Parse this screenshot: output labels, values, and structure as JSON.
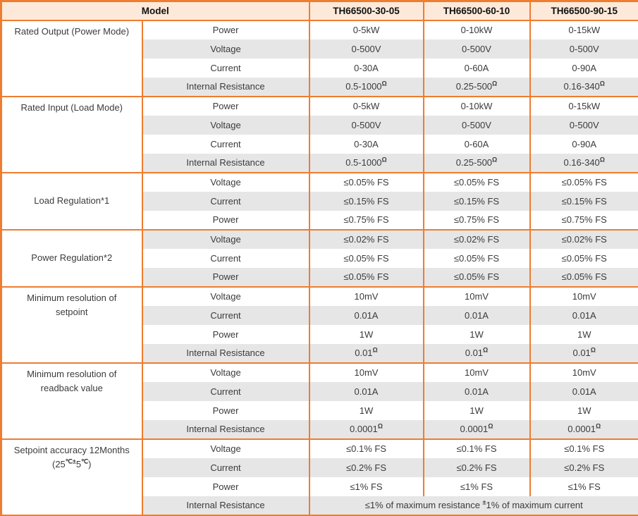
{
  "colors": {
    "accent_orange": "#ED7D31",
    "header_fill": "#FDE9D9",
    "row_stripe_gray": "#E6E6E6",
    "body_text": "#3B3B3B"
  },
  "table": {
    "header": {
      "model_label": "Model",
      "columns": [
        "TH66500-30-05",
        "TH66500-60-10",
        "TH66500-90-15"
      ]
    },
    "sections": [
      {
        "label": "Rated Output (Power Mode)",
        "label_align": "top",
        "rows": [
          {
            "param": "Power",
            "values": [
              "0-5kW",
              "0-10kW",
              "0-15kW"
            ]
          },
          {
            "param": "Voltage",
            "values": [
              "0-500V",
              "0-500V",
              "0-500V"
            ]
          },
          {
            "param": "Current",
            "values": [
              "0-30A",
              "0-60A",
              "0-90A"
            ]
          },
          {
            "param": "Internal Resistance",
            "values": [
              "0.5-1000^Ω^",
              "0.25-500^Ω^",
              "0.16-340^Ω^"
            ]
          }
        ]
      },
      {
        "label": "Rated Input (Load Mode)",
        "label_align": "top",
        "rows": [
          {
            "param": "Power",
            "values": [
              "0-5kW",
              "0-10kW",
              "0-15kW"
            ]
          },
          {
            "param": "Voltage",
            "values": [
              "0-500V",
              "0-500V",
              "0-500V"
            ]
          },
          {
            "param": "Current",
            "values": [
              "0-30A",
              "0-60A",
              "0-90A"
            ]
          },
          {
            "param": "Internal Resistance",
            "values": [
              "0.5-1000^Ω^",
              "0.25-500^Ω^",
              "0.16-340^Ω^"
            ]
          }
        ]
      },
      {
        "label": "Load Regulation*1",
        "label_align": "middle",
        "rows": [
          {
            "param": "Voltage",
            "values": [
              "≤0.05% FS",
              "≤0.05% FS",
              "≤0.05% FS"
            ]
          },
          {
            "param": "Current",
            "values": [
              "≤0.15% FS",
              "≤0.15% FS",
              "≤0.15% FS"
            ]
          },
          {
            "param": "Power",
            "values": [
              "≤0.75% FS",
              "≤0.75% FS",
              "≤0.75% FS"
            ]
          }
        ]
      },
      {
        "label": "Power Regulation*2",
        "label_align": "middle",
        "rows": [
          {
            "param": "Voltage",
            "values": [
              "≤0.02% FS",
              "≤0.02% FS",
              "≤0.02% FS"
            ]
          },
          {
            "param": "Current",
            "values": [
              "≤0.05% FS",
              "≤0.05% FS",
              "≤0.05% FS"
            ]
          },
          {
            "param": "Power",
            "values": [
              "≤0.05% FS",
              "≤0.05% FS",
              "≤0.05% FS"
            ]
          }
        ]
      },
      {
        "label": "Minimum resolution of\nsetpoint",
        "label_align": "top",
        "rows": [
          {
            "param": "Voltage",
            "values": [
              "10mV",
              "10mV",
              "10mV"
            ]
          },
          {
            "param": "Current",
            "values": [
              "0.01A",
              "0.01A",
              "0.01A"
            ]
          },
          {
            "param": "Power",
            "values": [
              "1W",
              "1W",
              "1W"
            ]
          },
          {
            "param": "Internal Resistance",
            "values": [
              "0.01^Ω^",
              "0.01^Ω^",
              "0.01^Ω^"
            ]
          }
        ]
      },
      {
        "label": "Minimum resolution of\nreadback value",
        "label_align": "top",
        "rows": [
          {
            "param": "Voltage",
            "values": [
              "10mV",
              "10mV",
              "10mV"
            ]
          },
          {
            "param": "Current",
            "values": [
              "0.01A",
              "0.01A",
              "0.01A"
            ]
          },
          {
            "param": "Power",
            "values": [
              "1W",
              "1W",
              "1W"
            ]
          },
          {
            "param": "Internal Resistance",
            "values": [
              "0.0001^Ω^",
              "0.0001^Ω^",
              "0.0001^Ω^"
            ]
          }
        ]
      },
      {
        "label": "Setpoint accuracy 12Months\n(25^℃±^5^℃^)",
        "label_align": "top",
        "rows": [
          {
            "param": "Voltage",
            "values": [
              "≤0.1% FS",
              "≤0.1% FS",
              "≤0.1% FS"
            ]
          },
          {
            "param": "Current",
            "values": [
              "≤0.2% FS",
              "≤0.2% FS",
              "≤0.2% FS"
            ]
          },
          {
            "param": "Power",
            "values": [
              "≤1% FS",
              "≤1% FS",
              "≤1% FS"
            ]
          },
          {
            "param": "Internal Resistance",
            "merged": true,
            "values": [
              "≤1% of maximum resistance ^±^1% of maximum current"
            ]
          }
        ]
      }
    ]
  }
}
